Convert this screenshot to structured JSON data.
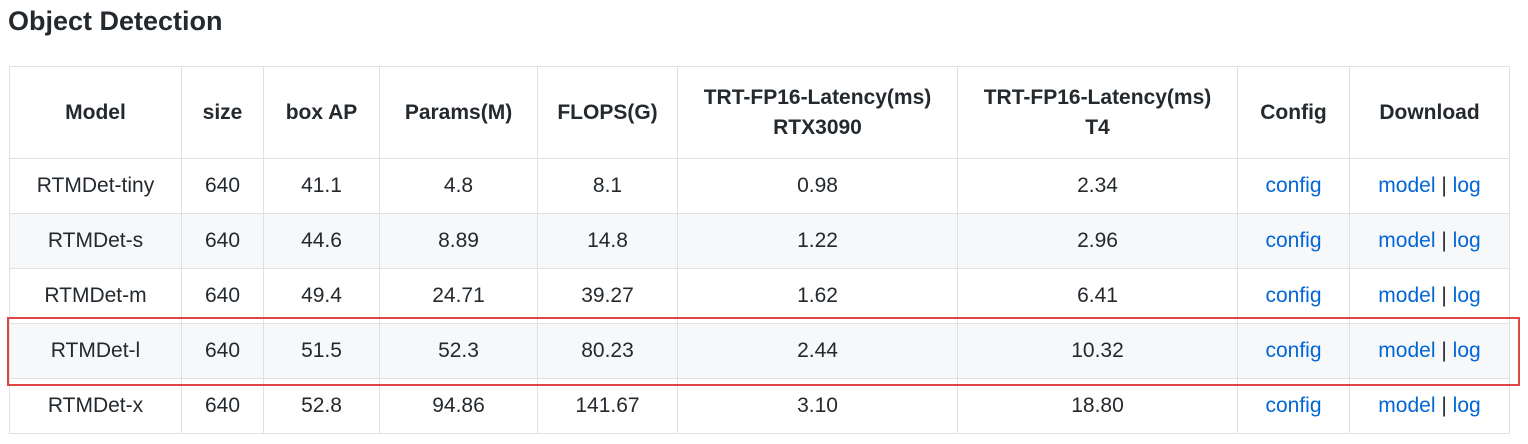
{
  "title": "Object Detection",
  "table": {
    "header": [
      [
        "Model"
      ],
      [
        "size"
      ],
      [
        "box AP"
      ],
      [
        "Params(M)"
      ],
      [
        "FLOPS(G)"
      ],
      [
        "TRT-FP16-Latency(ms)",
        "RTX3090"
      ],
      [
        "TRT-FP16-Latency(ms)",
        "T4"
      ],
      [
        "Config"
      ],
      [
        "Download"
      ]
    ],
    "rows": [
      [
        "RTMDet-tiny",
        "640",
        "41.1",
        "4.8",
        "8.1",
        "0.98",
        "2.34",
        "config",
        [
          "model",
          "|",
          "log"
        ]
      ],
      [
        "RTMDet-s",
        "640",
        "44.6",
        "8.89",
        "14.8",
        "1.22",
        "2.96",
        "config",
        [
          "model",
          "|",
          "log"
        ]
      ],
      [
        "RTMDet-m",
        "640",
        "49.4",
        "24.71",
        "39.27",
        "1.62",
        "6.41",
        "config",
        [
          "model",
          "|",
          "log"
        ]
      ],
      [
        "RTMDet-l",
        "640",
        "51.5",
        "52.3",
        "80.23",
        "2.44",
        "10.32",
        "config",
        [
          "model",
          "|",
          "log"
        ]
      ],
      [
        "RTMDet-x",
        "640",
        "52.8",
        "94.86",
        "141.67",
        "3.10",
        "18.80",
        "config",
        [
          "model",
          "|",
          "log"
        ]
      ]
    ]
  }
}
